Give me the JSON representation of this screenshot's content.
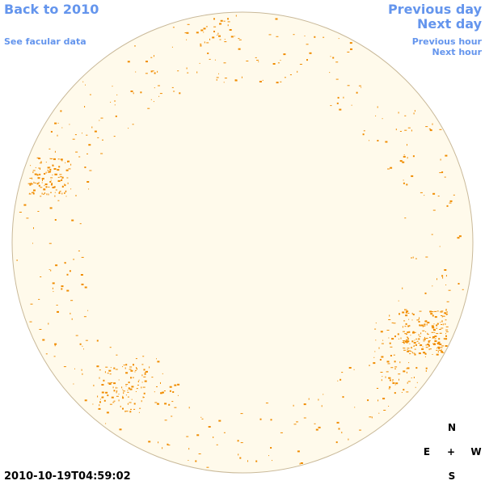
{
  "links": {
    "back": "Back to 2010",
    "facular": "See facular data",
    "prev_day": "Previous day",
    "next_day": "Next day",
    "prev_hour": "Previous hour",
    "next_hour": "Next hour"
  },
  "timestamp": "2010-10-19T04:59:02",
  "compass": {
    "north": "N",
    "east": "E",
    "center": "+",
    "west": "W",
    "south": "S"
  }
}
